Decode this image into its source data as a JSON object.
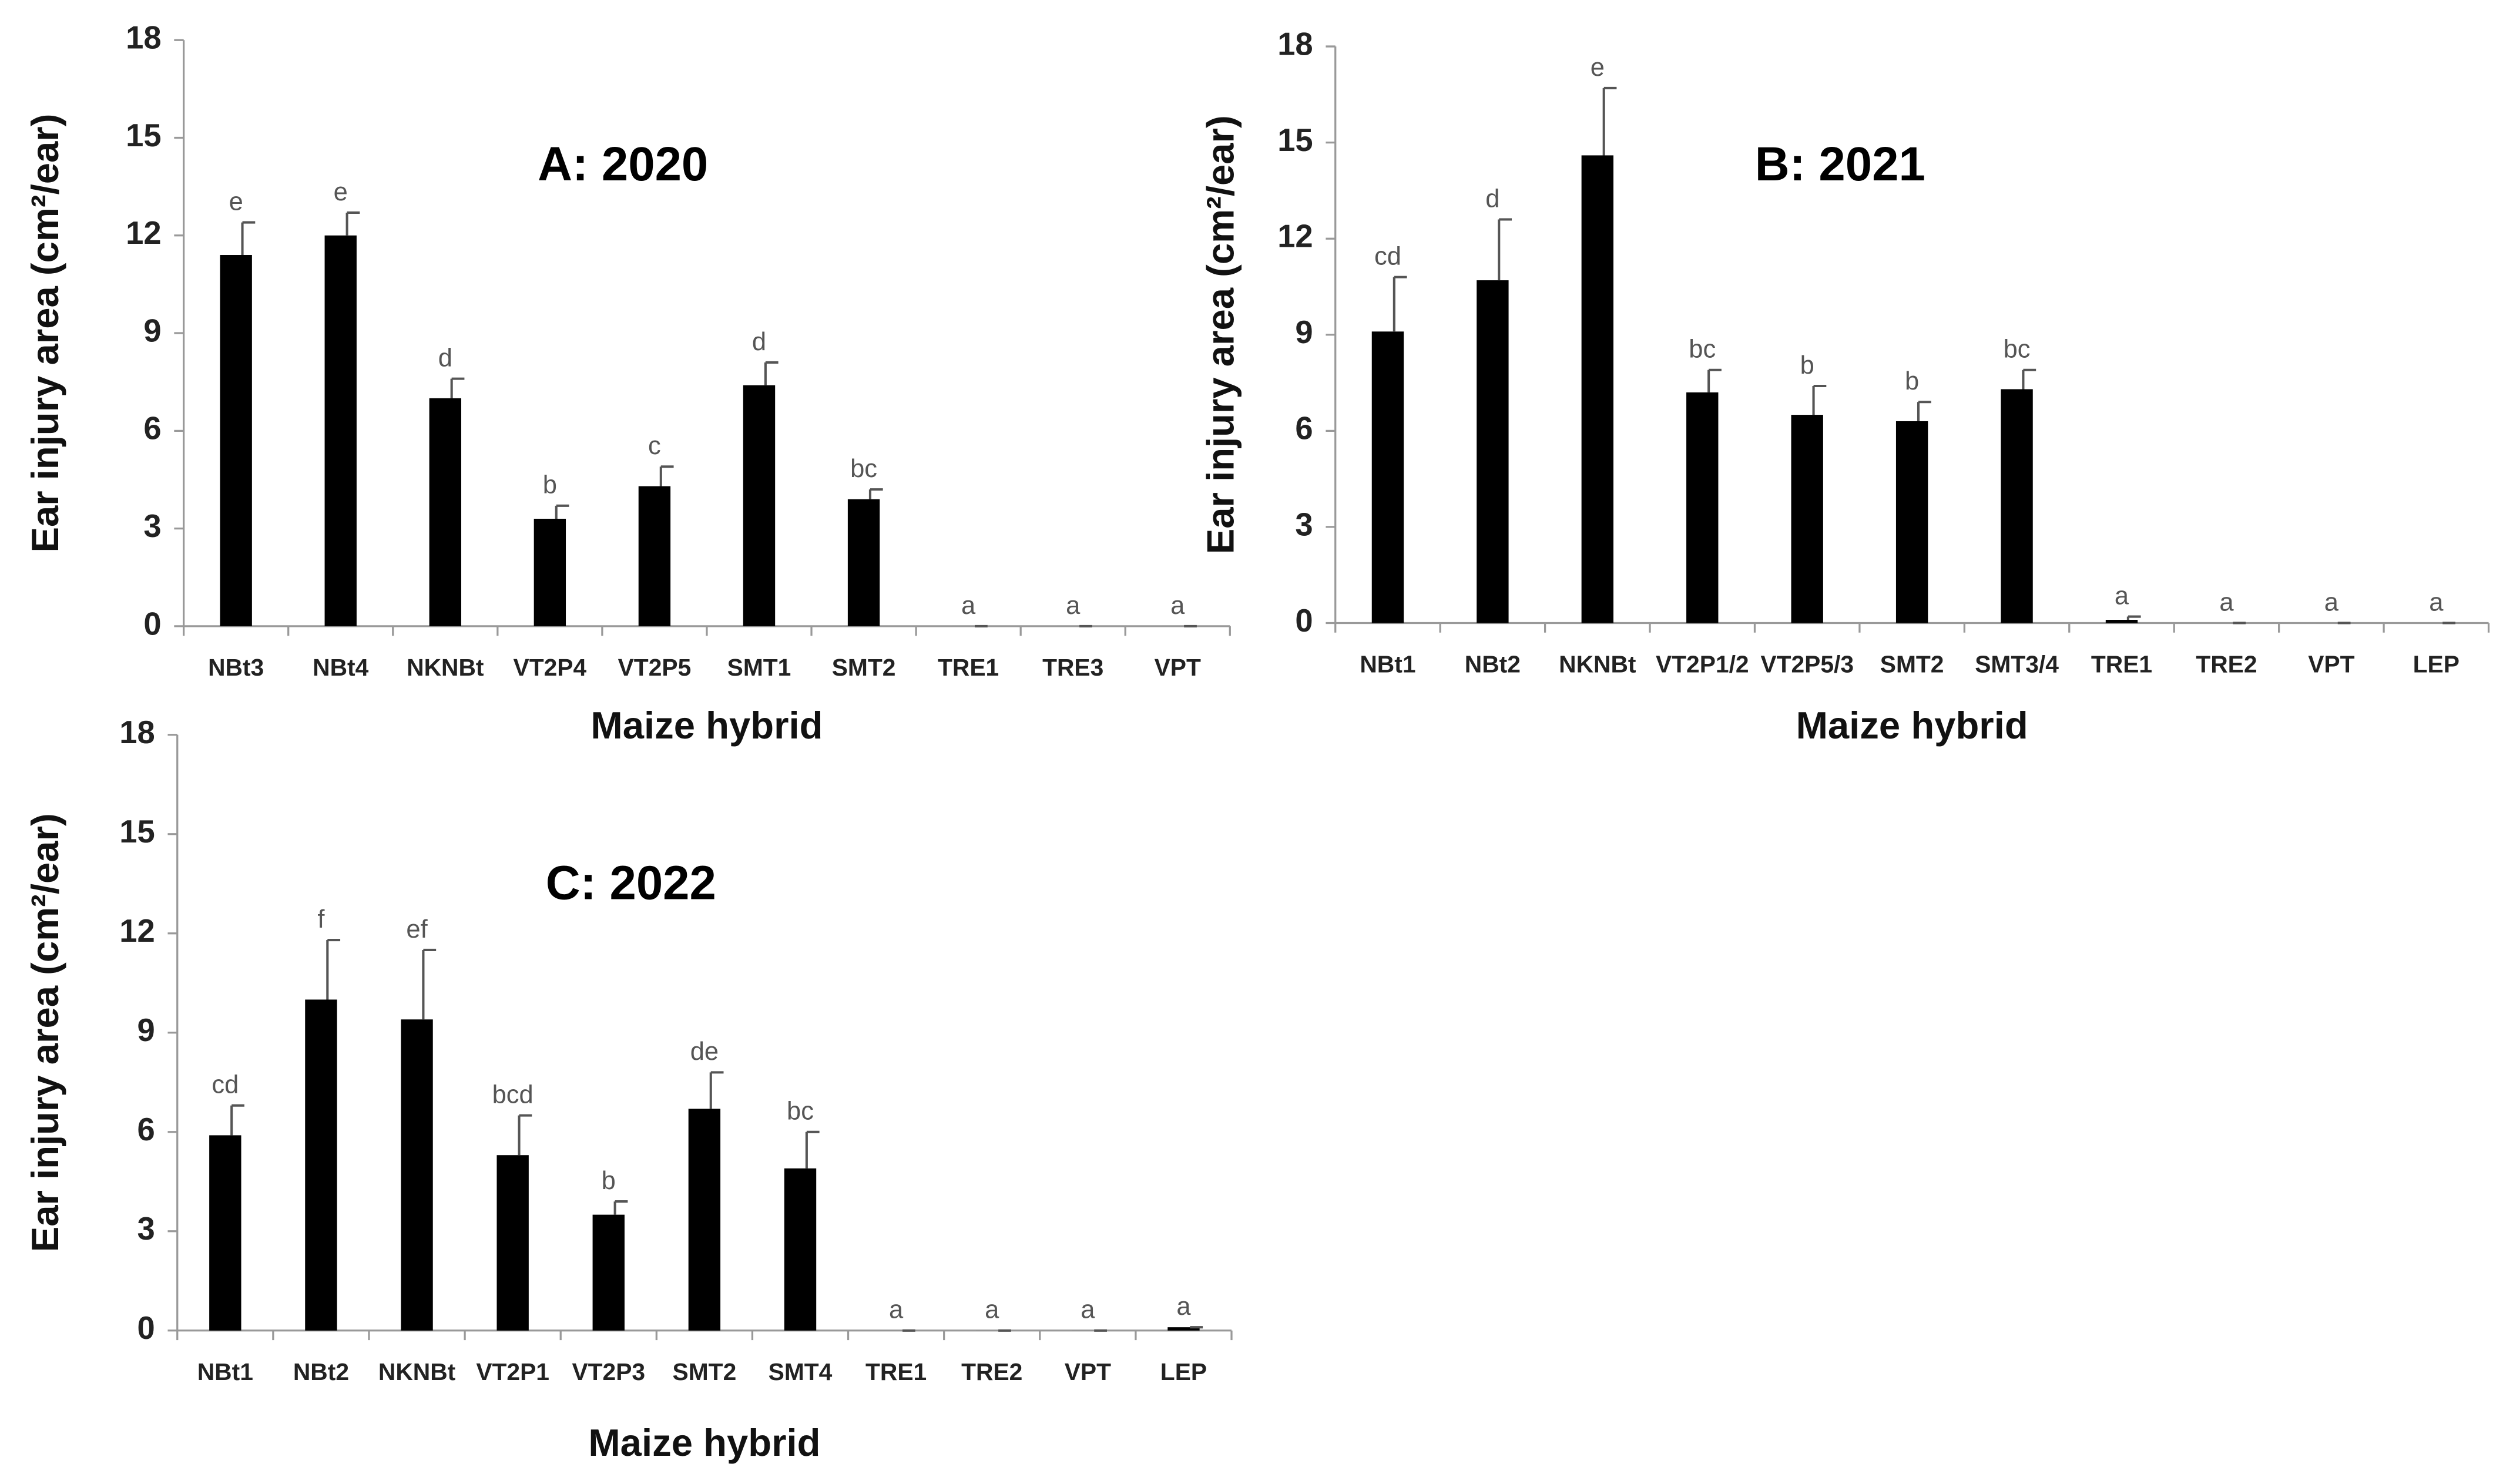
{
  "chart_data": [
    {
      "type": "bar",
      "title": "A: 2020",
      "xlabel": "Maize hybrid",
      "ylabel": "Ear injury area (cm²/ear)",
      "categories": [
        "NBt3",
        "NBt4",
        "NKNBt",
        "VT2P4",
        "VT2P5",
        "SMT1",
        "SMT2",
        "TRE1",
        "TRE3",
        "VPT"
      ],
      "values": [
        11.4,
        12.0,
        7.0,
        3.3,
        4.3,
        7.4,
        3.9,
        0,
        0,
        0
      ],
      "errors": [
        1.0,
        0.7,
        0.6,
        0.4,
        0.6,
        0.7,
        0.3,
        0,
        0,
        0
      ],
      "letters": [
        "e",
        "e",
        "d",
        "b",
        "c",
        "d",
        "bc",
        "a",
        "a",
        "a"
      ],
      "color": "#000000",
      "ylim": [
        0,
        18
      ],
      "yticks": [
        0,
        3,
        6,
        9,
        12,
        15,
        18
      ]
    },
    {
      "type": "bar",
      "title": "B: 2021",
      "xlabel": "Maize hybrid",
      "ylabel": "Ear injury area (cm²/ear)",
      "categories": [
        "NBt1",
        "NBt2",
        "NKNBt",
        "VT2P1/2",
        "VT2P5/3",
        "SMT2",
        "SMT3/4",
        "TRE1",
        "TRE2",
        "VPT",
        "LEP"
      ],
      "values": [
        9.1,
        10.7,
        14.6,
        7.2,
        6.5,
        6.3,
        7.3,
        0.1,
        0,
        0,
        0
      ],
      "errors": [
        1.7,
        1.9,
        2.1,
        0.7,
        0.9,
        0.6,
        0.6,
        0.1,
        0,
        0,
        0
      ],
      "letters": [
        "cd",
        "d",
        "e",
        "bc",
        "b",
        "b",
        "bc",
        "a",
        "a",
        "a",
        "a"
      ],
      "color": "#000000",
      "ylim": [
        0,
        18
      ],
      "yticks": [
        0,
        3,
        6,
        9,
        12,
        15,
        18
      ]
    },
    {
      "type": "bar",
      "title": "C: 2022",
      "xlabel": "Maize hybrid",
      "ylabel": "Ear injury area (cm²/ear)",
      "categories": [
        "NBt1",
        "NBt2",
        "NKNBt",
        "VT2P1",
        "VT2P3",
        "SMT2",
        "SMT4",
        "TRE1",
        "TRE2",
        "VPT",
        "LEP"
      ],
      "values": [
        5.9,
        10.0,
        9.4,
        5.3,
        3.5,
        6.7,
        4.9,
        0,
        0,
        0,
        0.1
      ],
      "errors": [
        0.9,
        1.8,
        2.1,
        1.2,
        0.4,
        1.1,
        1.1,
        0,
        0,
        0,
        0
      ],
      "letters": [
        "cd",
        "f",
        "ef",
        "bcd",
        "b",
        "de",
        "bc",
        "a",
        "a",
        "a",
        "a"
      ],
      "color": "#000000",
      "ylim": [
        0,
        18
      ],
      "yticks": [
        0,
        3,
        6,
        9,
        12,
        15,
        18
      ]
    }
  ]
}
